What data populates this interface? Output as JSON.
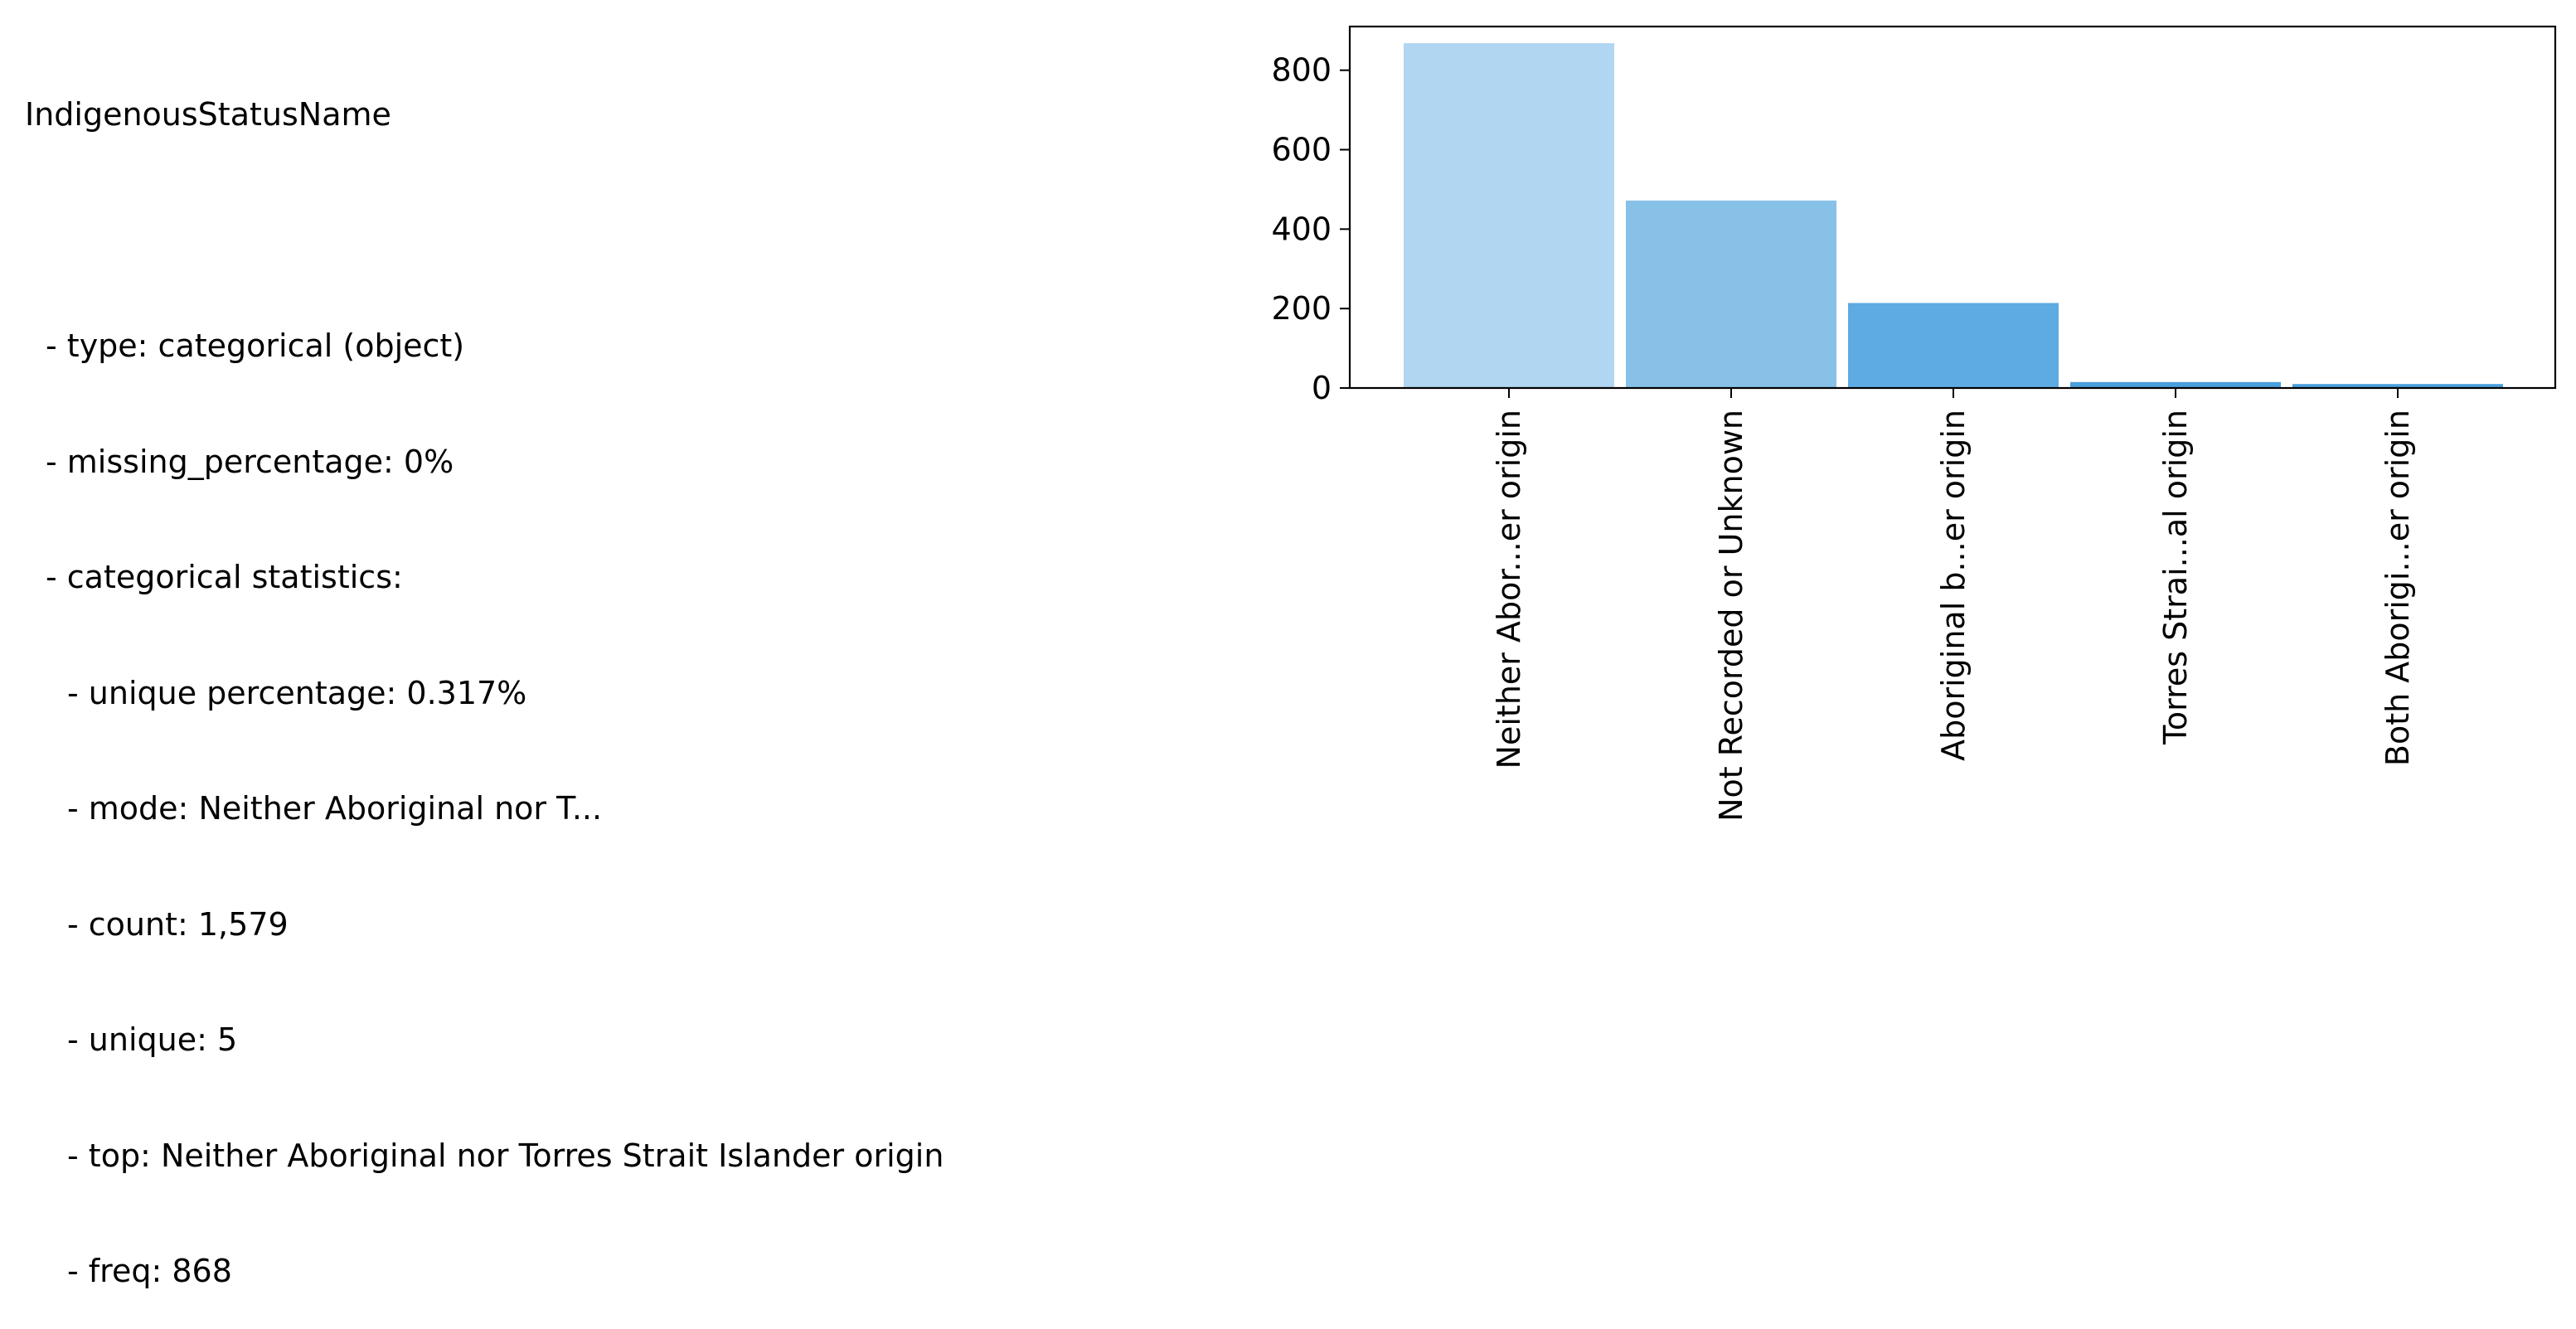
{
  "stats": {
    "column_name": "IndigenousStatusName",
    "lines": [
      {
        "text": "- type: categorical (object)",
        "level": 1
      },
      {
        "text": "- missing_percentage: 0%",
        "level": 1
      },
      {
        "text": "- categorical statistics:",
        "level": 1
      },
      {
        "text": "- unique percentage: 0.317%",
        "level": 2
      },
      {
        "text": "- mode: Neither Aboriginal nor T...",
        "level": 2
      },
      {
        "text": "- count: 1,579",
        "level": 2
      },
      {
        "text": "- unique: 5",
        "level": 2
      },
      {
        "text": "- top: Neither Aboriginal nor Torres Strait Islander origin",
        "level": 2
      },
      {
        "text": "- freq: 868",
        "level": 2
      }
    ]
  },
  "chart_data": {
    "type": "bar",
    "categories": [
      "Neither Abor...er origin",
      "Not Recorded or Unknown",
      "Aboriginal b...er origin",
      "Torres Strai...al origin",
      "Both Aborigi...er origin"
    ],
    "values": [
      868,
      472,
      214,
      15,
      10
    ],
    "colors": [
      "#b0d6f1",
      "#88c1e8",
      "#5dabe2",
      "#4a9fdc",
      "#4a9fdc"
    ],
    "yticks": [
      "0",
      "200",
      "400",
      "600",
      "800"
    ],
    "ylim": [
      0,
      910
    ],
    "title": "",
    "xlabel": "",
    "ylabel": "",
    "grid": false
  }
}
